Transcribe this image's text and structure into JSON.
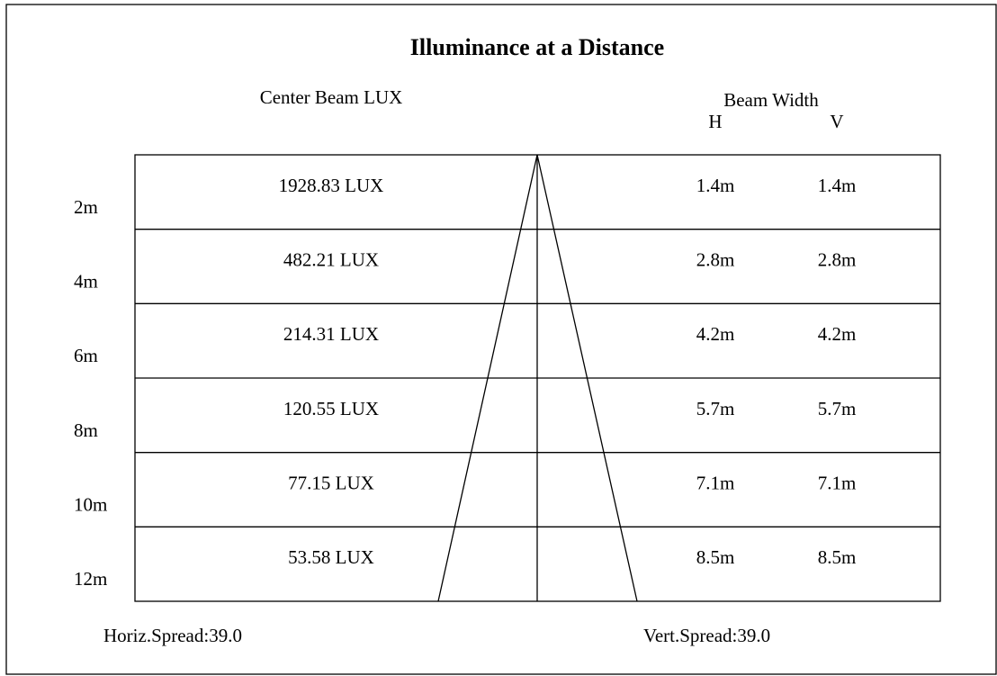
{
  "title": "Illuminance at a Distance",
  "headers": {
    "lux": "Center Beam LUX",
    "beam_width": "Beam Width",
    "h": "H",
    "v": "V"
  },
  "rows": [
    {
      "distance": "2m",
      "lux": "1928.83 LUX",
      "h": "1.4m",
      "v": "1.4m"
    },
    {
      "distance": "4m",
      "lux": "482.21 LUX",
      "h": "2.8m",
      "v": "2.8m"
    },
    {
      "distance": "6m",
      "lux": "214.31 LUX",
      "h": "4.2m",
      "v": "4.2m"
    },
    {
      "distance": "8m",
      "lux": "120.55 LUX",
      "h": "5.7m",
      "v": "5.7m"
    },
    {
      "distance": "10m",
      "lux": "77.15 LUX",
      "h": "7.1m",
      "v": "7.1m"
    },
    {
      "distance": "12m",
      "lux": "53.58 LUX",
      "h": "8.5m",
      "v": "8.5m"
    }
  ],
  "footer": {
    "horiz": "Horiz.Spread:39.0",
    "vert": "Vert.Spread:39.0"
  }
}
